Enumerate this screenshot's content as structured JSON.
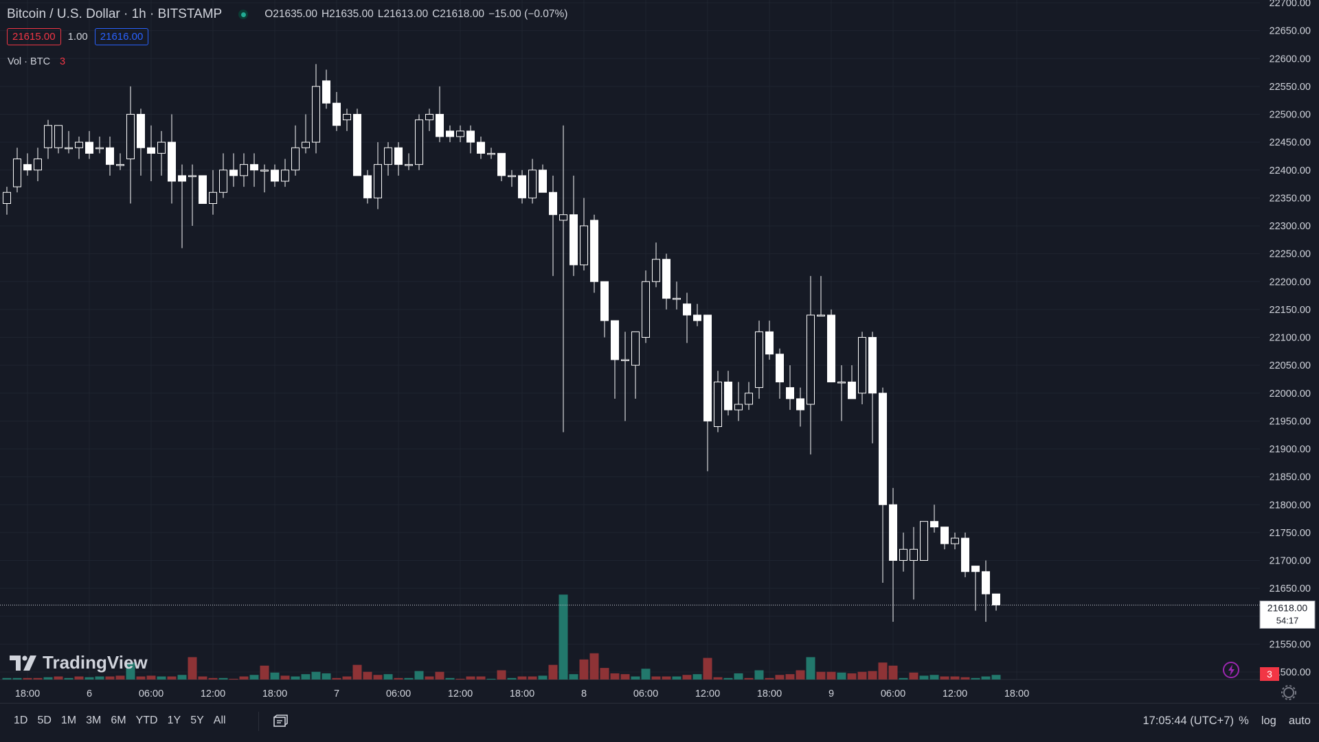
{
  "header": {
    "symbol": "Bitcoin / U.S. Dollar · 1h · BITSTAMP",
    "open_label": "O",
    "open": "21635.00",
    "high_label": "H",
    "high": "21635.00",
    "low_label": "L",
    "low": "21613.00",
    "close_label": "C",
    "close": "21618.00",
    "change": "−15.00 (−0.07%)",
    "sell_price": "21615.00",
    "spread": "1.00",
    "buy_price": "21616.00"
  },
  "volume_legend": {
    "label": "Vol · BTC",
    "count": "3"
  },
  "logo": {
    "text": "TradingView"
  },
  "price_scale": {
    "last_price": "21618.00",
    "countdown": "54:17",
    "bottom_badge": "3"
  },
  "bottom_bar": {
    "ranges": [
      "1D",
      "5D",
      "1M",
      "3M",
      "6M",
      "YTD",
      "1Y",
      "5Y",
      "All"
    ],
    "time": "17:05:44 (UTC+7)",
    "percent": "%",
    "log": "log",
    "auto": "auto"
  },
  "colors": {
    "background": "#161a25",
    "up_candle": "#ffffff",
    "down_candle": "#ffffff",
    "volume_up": "#22786c",
    "volume_down": "#8e3336",
    "grid": "#1f2430",
    "text": "#d1d4dc"
  },
  "icons": [
    "live-dot-icon",
    "tradingview-logo-icon",
    "compare-icon",
    "lightning-icon",
    "settings-gear-icon"
  ],
  "chart_data": {
    "type": "candlestick",
    "grid": true,
    "ylim": [
      21500,
      22700
    ],
    "y_ticks": [
      "22700.00",
      "22650.00",
      "22600.00",
      "22550.00",
      "22500.00",
      "22450.00",
      "22400.00",
      "22350.00",
      "22300.00",
      "22250.00",
      "22200.00",
      "22150.00",
      "22100.00",
      "22050.00",
      "22000.00",
      "21950.00",
      "21900.00",
      "21850.00",
      "21800.00",
      "21750.00",
      "21700.00",
      "21650.00",
      "21600.00",
      "21550.00",
      "21500.00"
    ],
    "x_ticks": [
      {
        "label": "18:00",
        "index": 2
      },
      {
        "label": "6",
        "index": 8
      },
      {
        "label": "06:00",
        "index": 14
      },
      {
        "label": "12:00",
        "index": 20
      },
      {
        "label": "18:00",
        "index": 26
      },
      {
        "label": "7",
        "index": 32
      },
      {
        "label": "06:00",
        "index": 38
      },
      {
        "label": "12:00",
        "index": 44
      },
      {
        "label": "18:00",
        "index": 50
      },
      {
        "label": "8",
        "index": 56
      },
      {
        "label": "06:00",
        "index": 62
      },
      {
        "label": "12:00",
        "index": 68
      },
      {
        "label": "18:00",
        "index": 74
      },
      {
        "label": "9",
        "index": 80
      },
      {
        "label": "06:00",
        "index": 86
      },
      {
        "label": "12:00",
        "index": 92
      },
      {
        "label": "18:00",
        "index": 98
      }
    ],
    "candles": [
      [
        22340,
        22370,
        22320,
        22360
      ],
      [
        22370,
        22440,
        22360,
        22420
      ],
      [
        22410,
        22430,
        22390,
        22400
      ],
      [
        22400,
        22440,
        22380,
        22420
      ],
      [
        22440,
        22490,
        22420,
        22480
      ],
      [
        22440,
        22480,
        22430,
        22480
      ],
      [
        22440,
        22470,
        22430,
        22440
      ],
      [
        22440,
        22460,
        22420,
        22450
      ],
      [
        22450,
        22470,
        22420,
        22430
      ],
      [
        22440,
        22460,
        22430,
        22440
      ],
      [
        22440,
        22460,
        22390,
        22410
      ],
      [
        22410,
        22430,
        22400,
        22410
      ],
      [
        22420,
        22550,
        22340,
        22500
      ],
      [
        22500,
        22510,
        22390,
        22440
      ],
      [
        22440,
        22480,
        22380,
        22430
      ],
      [
        22430,
        22470,
        22390,
        22450
      ],
      [
        22450,
        22500,
        22340,
        22380
      ],
      [
        22390,
        22410,
        22260,
        22380
      ],
      [
        22390,
        22410,
        22300,
        22390
      ],
      [
        22390,
        22390,
        22340,
        22340
      ],
      [
        22340,
        22400,
        22320,
        22360
      ],
      [
        22360,
        22430,
        22350,
        22400
      ],
      [
        22400,
        22430,
        22370,
        22390
      ],
      [
        22390,
        22430,
        22370,
        22410
      ],
      [
        22410,
        22430,
        22370,
        22400
      ],
      [
        22400,
        22410,
        22360,
        22400
      ],
      [
        22400,
        22410,
        22370,
        22380
      ],
      [
        22380,
        22420,
        22370,
        22400
      ],
      [
        22400,
        22480,
        22390,
        22440
      ],
      [
        22440,
        22500,
        22430,
        22450
      ],
      [
        22450,
        22590,
        22430,
        22550
      ],
      [
        22560,
        22580,
        22510,
        22520
      ],
      [
        22520,
        22540,
        22470,
        22480
      ],
      [
        22490,
        22510,
        22470,
        22500
      ],
      [
        22500,
        22510,
        22390,
        22390
      ],
      [
        22390,
        22400,
        22340,
        22350
      ],
      [
        22350,
        22450,
        22330,
        22410
      ],
      [
        22410,
        22450,
        22390,
        22440
      ],
      [
        22440,
        22450,
        22390,
        22410
      ],
      [
        22410,
        22430,
        22400,
        22410
      ],
      [
        22410,
        22500,
        22400,
        22490
      ],
      [
        22490,
        22510,
        22470,
        22500
      ],
      [
        22500,
        22550,
        22450,
        22460
      ],
      [
        22470,
        22480,
        22450,
        22460
      ],
      [
        22460,
        22480,
        22450,
        22470
      ],
      [
        22470,
        22480,
        22430,
        22450
      ],
      [
        22450,
        22460,
        22420,
        22430
      ],
      [
        22430,
        22440,
        22420,
        22430
      ],
      [
        22430,
        22430,
        22380,
        22390
      ],
      [
        22390,
        22400,
        22370,
        22390
      ],
      [
        22390,
        22400,
        22340,
        22350
      ],
      [
        22350,
        22420,
        22340,
        22400
      ],
      [
        22400,
        22410,
        22360,
        22360
      ],
      [
        22360,
        22390,
        22210,
        22320
      ],
      [
        22310,
        22480,
        21930,
        22320
      ],
      [
        22320,
        22390,
        22210,
        22230
      ],
      [
        22230,
        22350,
        22220,
        22300
      ],
      [
        22310,
        22320,
        22180,
        22200
      ],
      [
        22200,
        22200,
        22100,
        22130
      ],
      [
        22130,
        22130,
        21990,
        22060
      ],
      [
        22060,
        22110,
        21950,
        22060
      ],
      [
        22050,
        22110,
        21990,
        22110
      ],
      [
        22100,
        22220,
        22090,
        22200
      ],
      [
        22200,
        22270,
        22190,
        22240
      ],
      [
        22240,
        22250,
        22150,
        22170
      ],
      [
        22170,
        22200,
        22150,
        22170
      ],
      [
        22160,
        22180,
        22090,
        22140
      ],
      [
        22140,
        22160,
        22120,
        22130
      ],
      [
        22140,
        22140,
        21860,
        21950
      ],
      [
        21940,
        22040,
        21930,
        22020
      ],
      [
        22020,
        22040,
        21960,
        21970
      ],
      [
        21970,
        22020,
        21950,
        21980
      ],
      [
        21980,
        22020,
        21970,
        22000
      ],
      [
        22010,
        22130,
        21990,
        22110
      ],
      [
        22110,
        22130,
        22060,
        22070
      ],
      [
        22070,
        22080,
        21990,
        22020
      ],
      [
        22010,
        22050,
        21970,
        21990
      ],
      [
        21990,
        22010,
        21940,
        21970
      ],
      [
        21980,
        22210,
        21890,
        22140
      ],
      [
        22140,
        22210,
        22140,
        22140
      ],
      [
        22140,
        22150,
        22020,
        22020
      ],
      [
        22020,
        22050,
        21950,
        22020
      ],
      [
        22020,
        22050,
        21990,
        21990
      ],
      [
        22000,
        22110,
        21980,
        22100
      ],
      [
        22100,
        22110,
        21910,
        22000
      ],
      [
        22000,
        22010,
        21660,
        21800
      ],
      [
        21800,
        21830,
        21590,
        21700
      ],
      [
        21700,
        21750,
        21680,
        21720
      ],
      [
        21700,
        21760,
        21630,
        21720
      ],
      [
        21700,
        21770,
        21700,
        21770
      ],
      [
        21770,
        21800,
        21750,
        21760
      ],
      [
        21760,
        21760,
        21720,
        21730
      ],
      [
        21730,
        21750,
        21720,
        21740
      ],
      [
        21740,
        21750,
        21670,
        21680
      ],
      [
        21690,
        21690,
        21610,
        21680
      ],
      [
        21680,
        21700,
        21590,
        21640
      ],
      [
        21640,
        21640,
        21610,
        21620
      ]
    ],
    "volume_ylim": [
      0,
      3.2
    ],
    "volumes": [
      [
        0.1,
        "up"
      ],
      [
        0.1,
        "up"
      ],
      [
        0.1,
        "down"
      ],
      [
        0.1,
        "down"
      ],
      [
        0.15,
        "up"
      ],
      [
        0.2,
        "down"
      ],
      [
        0.1,
        "up"
      ],
      [
        0.2,
        "down"
      ],
      [
        0.15,
        "up"
      ],
      [
        0.2,
        "up"
      ],
      [
        0.2,
        "down"
      ],
      [
        0.25,
        "down"
      ],
      [
        1.1,
        "up"
      ],
      [
        0.2,
        "down"
      ],
      [
        0.25,
        "down"
      ],
      [
        0.2,
        "up"
      ],
      [
        0.2,
        "down"
      ],
      [
        0.3,
        "up"
      ],
      [
        1.45,
        "down"
      ],
      [
        0.2,
        "down"
      ],
      [
        0.1,
        "down"
      ],
      [
        0.1,
        "up"
      ],
      [
        0.05,
        "down"
      ],
      [
        0.2,
        "down"
      ],
      [
        0.3,
        "up"
      ],
      [
        0.9,
        "down"
      ],
      [
        0.45,
        "up"
      ],
      [
        0.25,
        "down"
      ],
      [
        0.2,
        "up"
      ],
      [
        0.35,
        "up"
      ],
      [
        0.5,
        "up"
      ],
      [
        0.4,
        "up"
      ],
      [
        0.1,
        "down"
      ],
      [
        0.2,
        "down"
      ],
      [
        0.95,
        "down"
      ],
      [
        0.5,
        "down"
      ],
      [
        0.3,
        "down"
      ],
      [
        0.35,
        "up"
      ],
      [
        0.1,
        "down"
      ],
      [
        0.1,
        "up"
      ],
      [
        0.55,
        "up"
      ],
      [
        0.2,
        "down"
      ],
      [
        0.5,
        "down"
      ],
      [
        0.1,
        "up"
      ],
      [
        0.05,
        "down"
      ],
      [
        0.2,
        "down"
      ],
      [
        0.2,
        "down"
      ],
      [
        0.05,
        "up"
      ],
      [
        0.6,
        "down"
      ],
      [
        0.1,
        "up"
      ],
      [
        0.2,
        "down"
      ],
      [
        0.2,
        "down"
      ],
      [
        0.25,
        "up"
      ],
      [
        0.95,
        "down"
      ],
      [
        5.5,
        "up"
      ],
      [
        0.35,
        "up"
      ],
      [
        1.3,
        "down"
      ],
      [
        1.7,
        "down"
      ],
      [
        0.75,
        "down"
      ],
      [
        0.4,
        "down"
      ],
      [
        0.35,
        "down"
      ],
      [
        0.2,
        "up"
      ],
      [
        0.7,
        "up"
      ],
      [
        0.2,
        "down"
      ],
      [
        0.2,
        "down"
      ],
      [
        0.2,
        "up"
      ],
      [
        0.3,
        "down"
      ],
      [
        0.35,
        "up"
      ],
      [
        1.4,
        "down"
      ],
      [
        0.15,
        "down"
      ],
      [
        0.1,
        "up"
      ],
      [
        0.4,
        "up"
      ],
      [
        0.1,
        "down"
      ],
      [
        0.6,
        "up"
      ],
      [
        0.1,
        "down"
      ],
      [
        0.3,
        "down"
      ],
      [
        0.35,
        "down"
      ],
      [
        0.6,
        "down"
      ],
      [
        1.45,
        "up"
      ],
      [
        0.5,
        "down"
      ],
      [
        0.5,
        "down"
      ],
      [
        0.45,
        "up"
      ],
      [
        0.4,
        "down"
      ],
      [
        0.5,
        "down"
      ],
      [
        0.55,
        "down"
      ],
      [
        1.1,
        "down"
      ],
      [
        0.9,
        "down"
      ],
      [
        0.1,
        "up"
      ],
      [
        0.45,
        "down"
      ],
      [
        0.25,
        "up"
      ],
      [
        0.3,
        "up"
      ],
      [
        0.2,
        "down"
      ],
      [
        0.2,
        "down"
      ],
      [
        0.15,
        "down"
      ],
      [
        0.1,
        "up"
      ],
      [
        0.2,
        "up"
      ],
      [
        0.3,
        "up"
      ]
    ]
  }
}
